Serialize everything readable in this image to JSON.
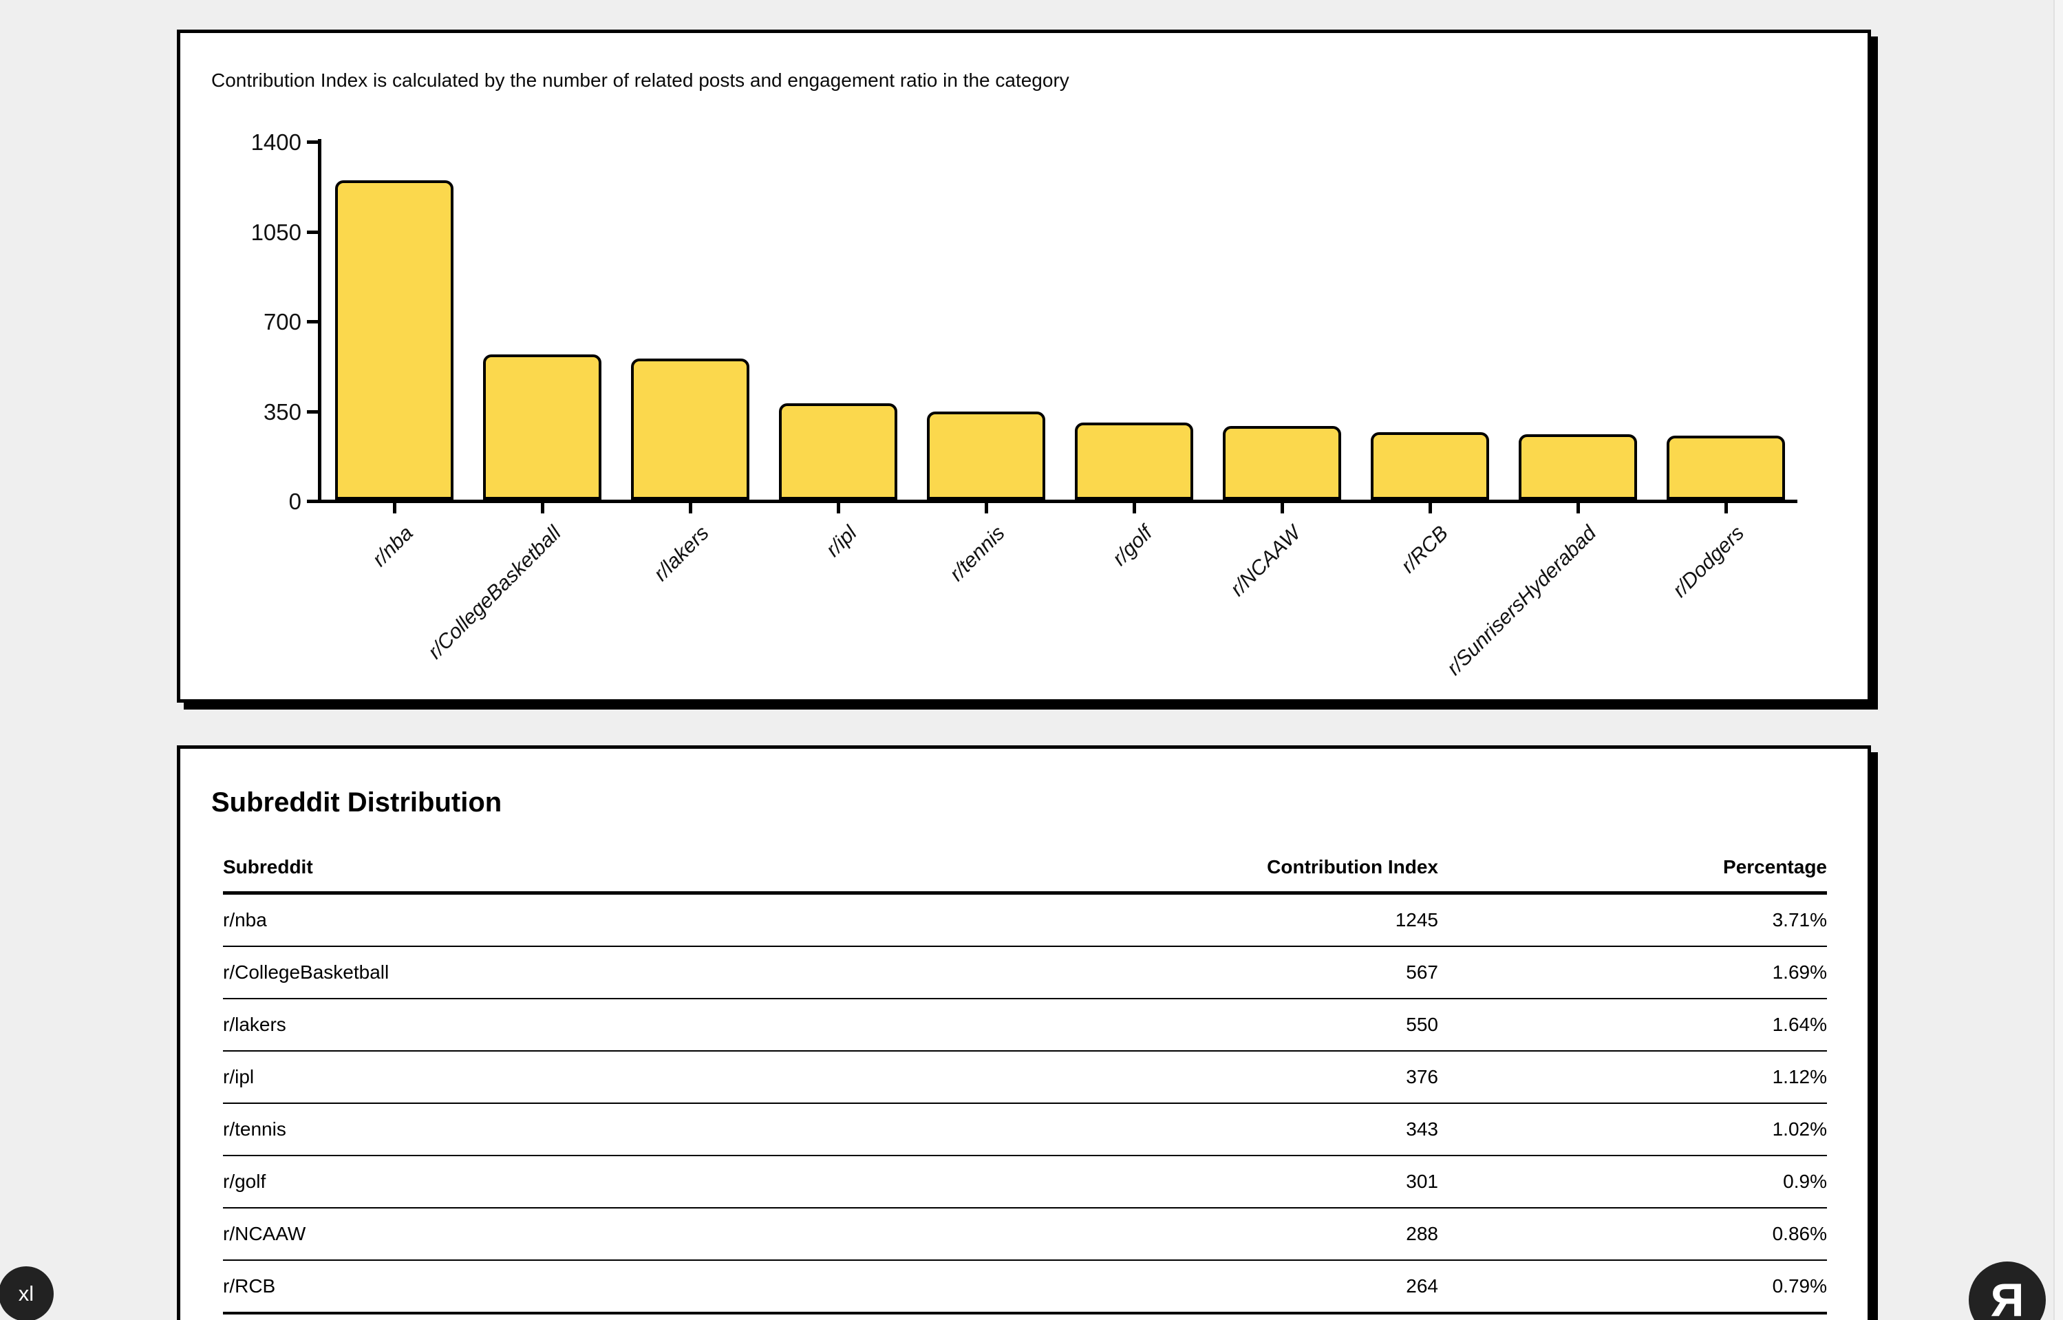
{
  "page": {
    "background": "#efefef"
  },
  "chart_card": {
    "title": "Contribution Index is calculated by the number of related posts and engagement ratio in the category"
  },
  "chart_data": {
    "type": "bar",
    "title": "Contribution Index is calculated by the number of related posts and engagement ratio in the category",
    "categories": [
      "r/nba",
      "r/CollegeBasketball",
      "r/lakers",
      "r/ipl",
      "r/tennis",
      "r/golf",
      "r/NCAAW",
      "r/RCB",
      "r/SunrisersHyderabad",
      "r/Dodgers"
    ],
    "values": [
      1245,
      567,
      550,
      376,
      343,
      301,
      288,
      264,
      256,
      250
    ],
    "xlabel": "",
    "ylabel": "",
    "ylim": [
      0,
      1400
    ],
    "yticks": [
      0,
      350,
      700,
      1050,
      1400
    ],
    "grid": false,
    "legend": false,
    "bar_color": "#fbd84d",
    "bar_border_color": "#000000"
  },
  "table_card": {
    "title": "Subreddit Distribution",
    "columns": [
      "Subreddit",
      "Contribution Index",
      "Percentage"
    ],
    "rows": [
      {
        "subreddit": "r/nba",
        "contribution_index": "1245",
        "percentage": "3.71%"
      },
      {
        "subreddit": "r/CollegeBasketball",
        "contribution_index": "567",
        "percentage": "1.69%"
      },
      {
        "subreddit": "r/lakers",
        "contribution_index": "550",
        "percentage": "1.64%"
      },
      {
        "subreddit": "r/ipl",
        "contribution_index": "376",
        "percentage": "1.12%"
      },
      {
        "subreddit": "r/tennis",
        "contribution_index": "343",
        "percentage": "1.02%"
      },
      {
        "subreddit": "r/golf",
        "contribution_index": "301",
        "percentage": "0.9%"
      },
      {
        "subreddit": "r/NCAAW",
        "contribution_index": "288",
        "percentage": "0.86%"
      },
      {
        "subreddit": "r/RCB",
        "contribution_index": "264",
        "percentage": "0.79%"
      }
    ]
  },
  "badges": {
    "xl_label": "xl",
    "logo_glyph": "Я"
  }
}
